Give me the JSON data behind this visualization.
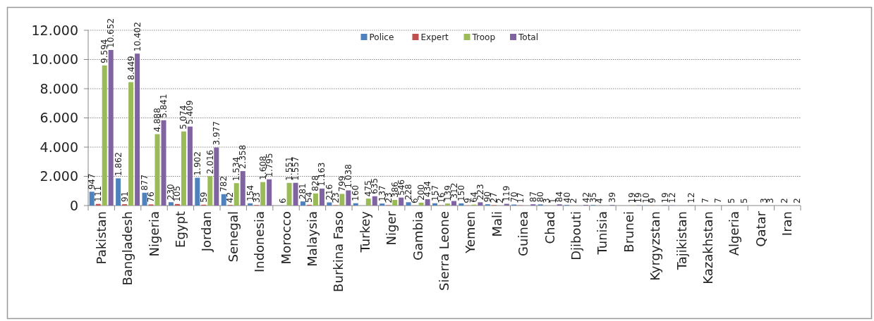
{
  "chart_data": {
    "type": "bar",
    "categories": [
      "Pakistan",
      "Bangladesh",
      "Nigeria",
      "Egypt",
      "Jordan",
      "Senegal",
      "Indonesia",
      "Morocco",
      "Malaysia",
      "Burkina Faso",
      "Turkey",
      "Niger",
      "Gambia",
      "Sierra Leone",
      "Yemen",
      "Mali",
      "Guinea",
      "Chad",
      "Djibouti",
      "Tunisia",
      "Brunei",
      "Kyrgyzstan",
      "Tajikistan",
      "Kazakhstan",
      "Algeria",
      "Qatar",
      "Iran"
    ],
    "series": [
      {
        "name": "Police",
        "color": "#4f81bd",
        "values": [
          947,
          1862,
          877,
          230,
          1902,
          782,
          154,
          null,
          281,
          216,
          160,
          137,
          228,
          157,
          150,
          90,
          70,
          80,
          40,
          35,
          null,
          10,
          12,
          null,
          null,
          null,
          null
        ],
        "value_labels": [
          "947",
          "1.862",
          "877",
          "230",
          "1.902",
          "782",
          "154",
          null,
          "281",
          "216",
          "160",
          "137",
          "228",
          "157",
          "150",
          "90",
          "70",
          "80",
          "40",
          "35",
          null,
          "10",
          "12",
          null,
          null,
          null,
          null
        ]
      },
      {
        "name": "Expert",
        "color": "#c0504d",
        "values": [
          111,
          91,
          76,
          105,
          59,
          42,
          33,
          6,
          54,
          23,
          null,
          23,
          6,
          16,
          9,
          27,
          17,
          3,
          2,
          4,
          null,
          9,
          null,
          7,
          5,
          null,
          2
        ],
        "value_labels": [
          "111",
          "91",
          "76",
          "105",
          "59",
          "42",
          "33",
          "6",
          "54",
          "23",
          null,
          "23",
          "6",
          "16",
          "9",
          "27",
          "17",
          "3",
          "2",
          "4",
          null,
          "9",
          null,
          "7",
          "5",
          null,
          "2"
        ]
      },
      {
        "name": "Troop",
        "color": "#9bbb59",
        "values": [
          9594,
          8449,
          4888,
          5074,
          2016,
          1534,
          1608,
          1551,
          828,
          799,
          475,
          386,
          200,
          139,
          64,
          2,
          null,
          1,
          null,
          null,
          19,
          null,
          null,
          null,
          null,
          3,
          null
        ],
        "value_labels": [
          "9.594",
          "8.449",
          "4.888",
          "5.074",
          "2.016",
          "1.534",
          "1.608",
          "1.551",
          "828",
          "799",
          "475",
          "386",
          "200",
          "139",
          "64",
          "2",
          null,
          "1",
          null,
          null,
          "19",
          null,
          null,
          null,
          null,
          "3",
          null
        ]
      },
      {
        "name": "Total",
        "color": "#8064a2",
        "values": [
          10652,
          10402,
          5841,
          5409,
          3977,
          2358,
          1795,
          1557,
          1163,
          1038,
          635,
          546,
          434,
          312,
          223,
          119,
          87,
          84,
          42,
          39,
          19,
          19,
          12,
          7,
          5,
          3,
          2
        ],
        "value_labels": [
          "10.652",
          "10.402",
          "5.841",
          "5.409",
          "3.977",
          "2.358",
          "1.795",
          "1.557",
          "1.163",
          "1.038",
          "635",
          "546",
          "434",
          "312",
          "223",
          "119",
          "87",
          "84",
          "42",
          "39",
          "19",
          "19",
          "12",
          "7",
          "5",
          "3",
          "2"
        ]
      }
    ],
    "ylim": [
      0,
      12000
    ],
    "yticks": [
      {
        "value": 0,
        "label": "0"
      },
      {
        "value": 2000,
        "label": "2.000"
      },
      {
        "value": 4000,
        "label": "4.000"
      },
      {
        "value": 6000,
        "label": "6.000"
      },
      {
        "value": 8000,
        "label": "8.000"
      },
      {
        "value": 10000,
        "label": "10.000"
      },
      {
        "value": 12000,
        "label": "12.000"
      }
    ],
    "grid": "y",
    "legend": "top"
  }
}
